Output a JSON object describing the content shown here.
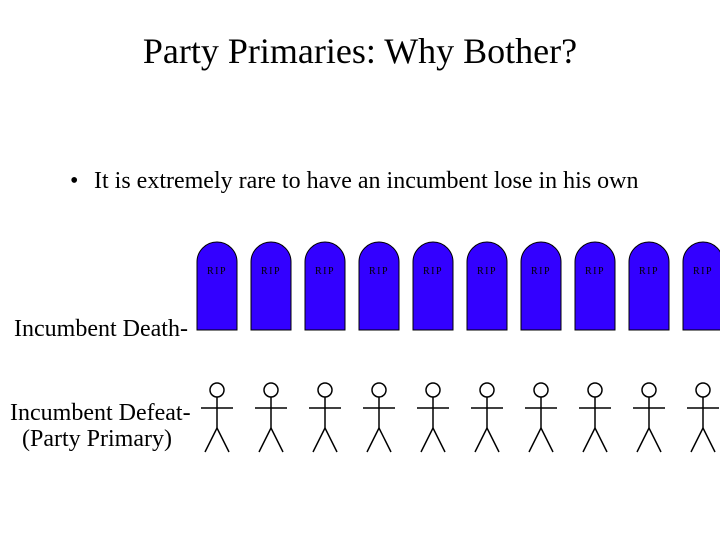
{
  "title": "Party Primaries: Why Bother?",
  "bullet": "It is extremely rare to have an incumbent lose in his own",
  "labels": {
    "death": "Incumbent Death-",
    "defeat": "Incumbent Defeat-\n  (Party Primary)"
  },
  "tombstone": {
    "count": 10,
    "fill": "#3300ff",
    "stroke": "#000000",
    "rip_text": "RIP"
  },
  "stick": {
    "count": 10,
    "stroke": "#000000",
    "stroke_width": 1.5
  },
  "background_color": "#ffffff",
  "text_color": "#000000"
}
